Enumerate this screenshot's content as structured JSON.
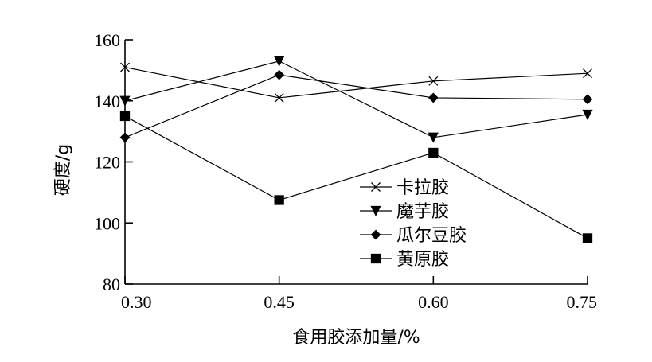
{
  "chart_data": {
    "type": "line",
    "title": "",
    "xlabel": "食用胶添加量/%",
    "ylabel": "硬度/g",
    "categories": [
      "0.30",
      "0.45",
      "0.60",
      "0.75"
    ],
    "x": [
      0.3,
      0.45,
      0.6,
      0.75
    ],
    "ylim": [
      80,
      160
    ],
    "yticks": [
      80,
      100,
      120,
      140,
      160
    ],
    "grid": false,
    "legend_position": "center-right",
    "series": [
      {
        "name": "卡拉胶",
        "marker": "x",
        "values": [
          151,
          141,
          146.5,
          149
        ]
      },
      {
        "name": "魔芋胶",
        "marker": "triangle-down",
        "values": [
          140,
          153,
          128,
          135.5
        ]
      },
      {
        "name": "瓜尔豆胶",
        "marker": "diamond",
        "values": [
          128,
          148.5,
          141,
          140.5
        ]
      },
      {
        "name": "黄原胶",
        "marker": "square",
        "values": [
          135,
          107.5,
          123,
          95
        ]
      }
    ]
  }
}
